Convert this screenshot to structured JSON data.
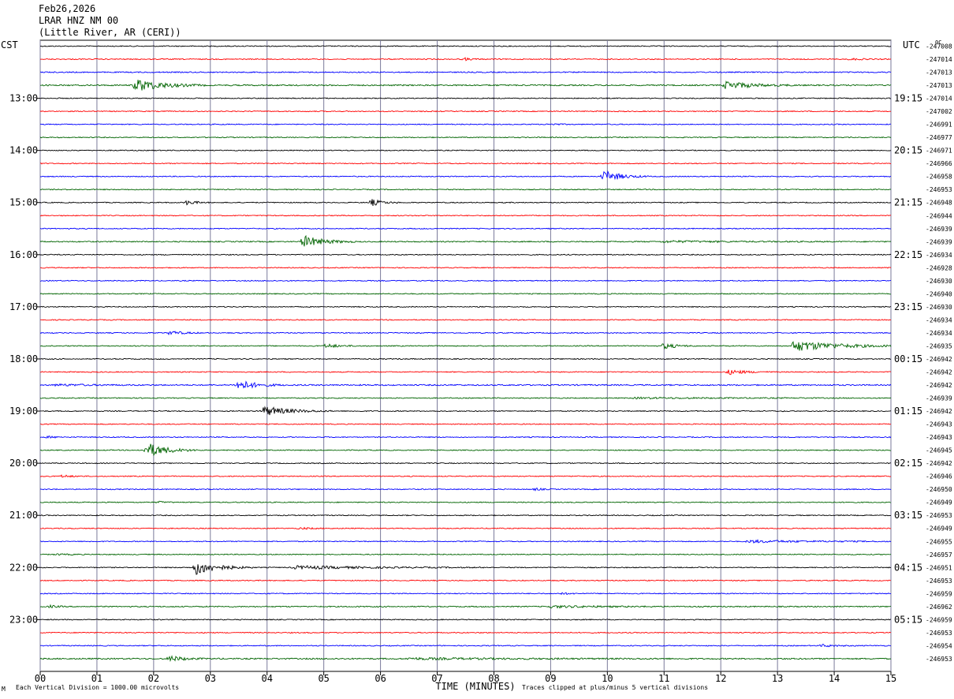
{
  "header": {
    "date": "Feb26,2026",
    "station": "LRAR HNZ NM 00",
    "location": "(Little River, AR (CERI))"
  },
  "left_tz": "CST",
  "right_tz": "UTC",
  "right_corner": "0C",
  "footer": {
    "scale_note": "Each Vertical Division = 1000.00 microvolts",
    "clip_note": "Traces clipped at plus/minus 5 vertical divisions",
    "corner_mark": "M"
  },
  "colors": {
    "trace_cycle": [
      "#000000",
      "#ff0000",
      "#0000ff",
      "#006400"
    ],
    "grid": "#7a7a9a"
  },
  "chart_data": {
    "type": "line",
    "xlabel": "TIME (MINUTES)",
    "xlim": [
      0,
      15
    ],
    "x_ticks": [
      "00",
      "01",
      "02",
      "03",
      "04",
      "05",
      "06",
      "07",
      "08",
      "09",
      "10",
      "11",
      "12",
      "13",
      "14",
      "15"
    ],
    "left_hour_labels": [
      "13:00",
      "14:00",
      "15:00",
      "16:00",
      "17:00",
      "18:00",
      "19:00",
      "20:00",
      "21:00",
      "22:00",
      "23:00"
    ],
    "right_hour_labels": [
      "19:15",
      "20:15",
      "21:15",
      "22:15",
      "23:15",
      "00:15",
      "01:15",
      "02:15",
      "03:15",
      "04:15",
      "05:15"
    ],
    "trace_offsets": [
      "-247008",
      "-247014",
      "-247013",
      "-247013",
      "-247014",
      "-247002",
      "-246991",
      "-246977",
      "-246971",
      "-246966",
      "-246958",
      "-246953",
      "-246948",
      "-246944",
      "-246939",
      "-246939",
      "-246934",
      "-246928",
      "-246930",
      "-246940",
      "-246930",
      "-246934",
      "-246934",
      "-246935",
      "-246942",
      "-246942",
      "-246942",
      "-246939",
      "-246942",
      "-246943",
      "-246943",
      "-246945",
      "-246942",
      "-246946",
      "-246950",
      "-246949",
      "-246953",
      "-246949",
      "-246955",
      "-246957",
      "-246951",
      "-246953",
      "-246959",
      "-246962",
      "-246959",
      "-246953",
      "-246954",
      "-246953"
    ],
    "noise_level": [
      0.6,
      0.6,
      0.7,
      0.8,
      0.6,
      0.6,
      0.6,
      0.6,
      0.6,
      0.6,
      0.6,
      0.6,
      0.6,
      0.6,
      0.6,
      0.7,
      0.6,
      0.6,
      0.6,
      0.6,
      0.6,
      0.6,
      0.6,
      0.6,
      0.6,
      0.6,
      0.8,
      0.6,
      0.6,
      0.6,
      0.6,
      0.6,
      0.6,
      0.6,
      0.6,
      0.6,
      0.6,
      0.6,
      0.6,
      0.6,
      0.6,
      0.6,
      0.6,
      0.7,
      0.6,
      0.6,
      0.6,
      0.8
    ],
    "events": [
      {
        "trace": 1,
        "minute": 7.5,
        "amplitude": 3,
        "duration": 0.3
      },
      {
        "trace": 1,
        "minute": 14.3,
        "amplitude": 2,
        "duration": 0.6
      },
      {
        "trace": 3,
        "minute": 1.7,
        "amplitude": 16,
        "duration": 1.2
      },
      {
        "trace": 3,
        "minute": 12.1,
        "amplitude": 10,
        "duration": 1.2
      },
      {
        "trace": 6,
        "minute": 9.0,
        "amplitude": 2,
        "duration": 0.4
      },
      {
        "trace": 10,
        "minute": 9.95,
        "amplitude": 14,
        "duration": 0.8
      },
      {
        "trace": 12,
        "minute": 2.6,
        "amplitude": 6,
        "duration": 0.4
      },
      {
        "trace": 12,
        "minute": 5.85,
        "amplitude": 8,
        "duration": 0.5
      },
      {
        "trace": 15,
        "minute": 4.65,
        "amplitude": 15,
        "duration": 0.9
      },
      {
        "trace": 15,
        "minute": 11.0,
        "amplitude": 2,
        "duration": 3.0
      },
      {
        "trace": 22,
        "minute": 2.3,
        "amplitude": 5,
        "duration": 0.6
      },
      {
        "trace": 23,
        "minute": 5.05,
        "amplitude": 5,
        "duration": 0.6
      },
      {
        "trace": 23,
        "minute": 11.0,
        "amplitude": 7,
        "duration": 0.6
      },
      {
        "trace": 23,
        "minute": 13.3,
        "amplitude": 14,
        "duration": 2.0
      },
      {
        "trace": 25,
        "minute": 12.15,
        "amplitude": 6,
        "duration": 0.8
      },
      {
        "trace": 26,
        "minute": 3.5,
        "amplitude": 12,
        "duration": 0.8
      },
      {
        "trace": 26,
        "minute": 0.3,
        "amplitude": 2,
        "duration": 1.5
      },
      {
        "trace": 27,
        "minute": 10.5,
        "amplitude": 1.5,
        "duration": 4.0
      },
      {
        "trace": 28,
        "minute": 3.95,
        "amplitude": 12,
        "duration": 1.2
      },
      {
        "trace": 30,
        "minute": 0.15,
        "amplitude": 2,
        "duration": 0.4
      },
      {
        "trace": 31,
        "minute": 1.9,
        "amplitude": 18,
        "duration": 0.9
      },
      {
        "trace": 33,
        "minute": 0.4,
        "amplitude": 3,
        "duration": 0.4
      },
      {
        "trace": 34,
        "minute": 8.75,
        "amplitude": 3,
        "duration": 0.3
      },
      {
        "trace": 35,
        "minute": 2.1,
        "amplitude": 2,
        "duration": 0.3
      },
      {
        "trace": 37,
        "minute": 4.6,
        "amplitude": 2,
        "duration": 0.6
      },
      {
        "trace": 38,
        "minute": 12.5,
        "amplitude": 3,
        "duration": 3.0
      },
      {
        "trace": 39,
        "minute": 0.3,
        "amplitude": 1.5,
        "duration": 0.5
      },
      {
        "trace": 40,
        "minute": 2.75,
        "amplitude": 18,
        "duration": 1.0
      },
      {
        "trace": 40,
        "minute": 4.5,
        "amplitude": 4,
        "duration": 3.5
      },
      {
        "trace": 42,
        "minute": 9.2,
        "amplitude": 2,
        "duration": 0.4
      },
      {
        "trace": 43,
        "minute": 0.2,
        "amplitude": 3,
        "duration": 0.3
      },
      {
        "trace": 43,
        "minute": 9.0,
        "amplitude": 2.5,
        "duration": 2.5
      },
      {
        "trace": 46,
        "minute": 13.8,
        "amplitude": 3,
        "duration": 0.6
      },
      {
        "trace": 47,
        "minute": 2.3,
        "amplitude": 7,
        "duration": 0.6
      },
      {
        "trace": 47,
        "minute": 6.5,
        "amplitude": 2,
        "duration": 5.0
      }
    ]
  }
}
